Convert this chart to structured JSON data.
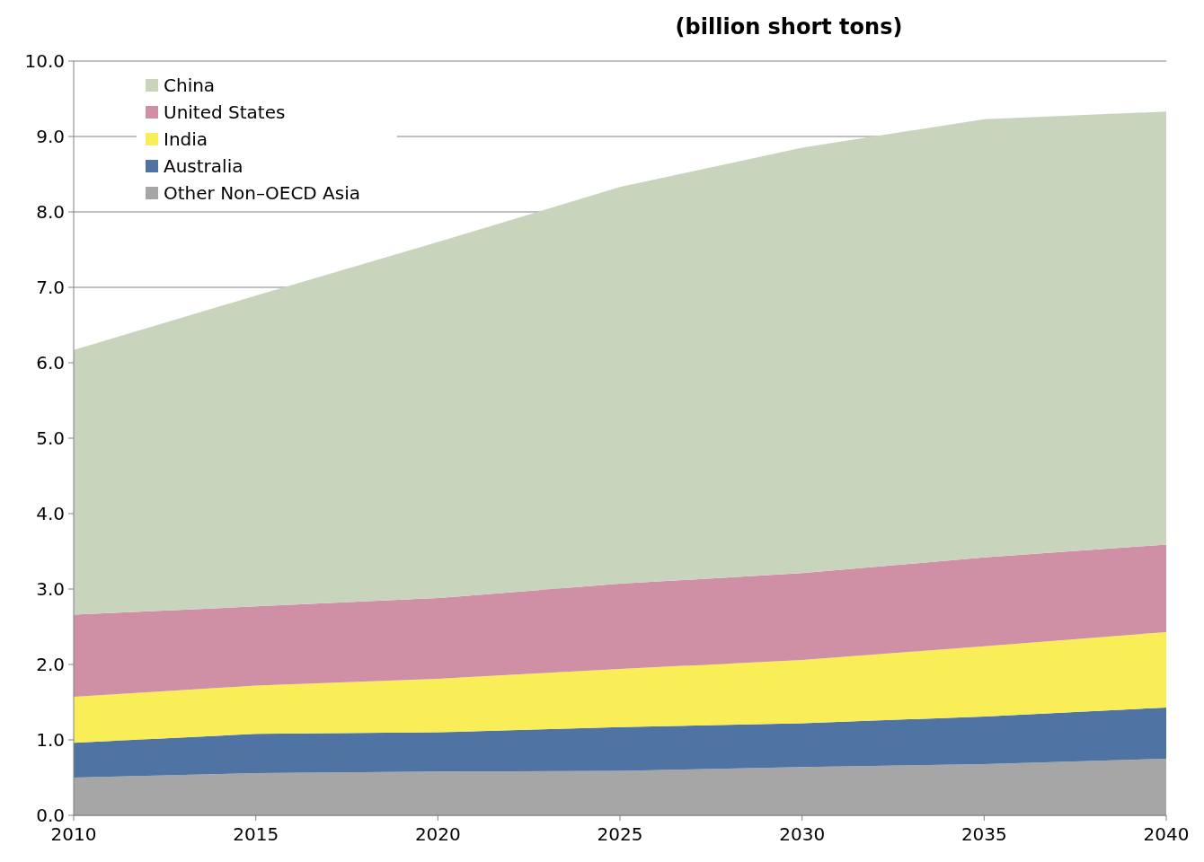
{
  "chart_data": {
    "type": "area",
    "stacked": true,
    "title": "(billion short tons)",
    "x": [
      2010,
      2015,
      2020,
      2025,
      2030,
      2035,
      2040
    ],
    "xlim": [
      2010,
      2040
    ],
    "xticks": [
      2010,
      2015,
      2020,
      2025,
      2030,
      2035,
      2040
    ],
    "ylim": [
      0,
      10
    ],
    "yticks": [
      {
        "value": 0,
        "label": "0.0"
      },
      {
        "value": 1,
        "label": "1.0"
      },
      {
        "value": 2,
        "label": "2.0"
      },
      {
        "value": 3,
        "label": "3.0"
      },
      {
        "value": 4,
        "label": "4.0"
      },
      {
        "value": 5,
        "label": "5.0"
      },
      {
        "value": 6,
        "label": "6.0"
      },
      {
        "value": 7,
        "label": "7.0"
      },
      {
        "value": 8,
        "label": "8.0"
      },
      {
        "value": 9,
        "label": "9.0"
      },
      {
        "value": 10,
        "label": "10.0"
      }
    ],
    "grid": "y",
    "legend": "top left",
    "series": [
      {
        "name": "Other Non–OECD Asia",
        "color": "#a6a6a6",
        "values": [
          0.5,
          0.56,
          0.58,
          0.59,
          0.64,
          0.68,
          0.75
        ]
      },
      {
        "name": "Australia",
        "color": "#4f73a3",
        "values": [
          0.46,
          0.52,
          0.52,
          0.58,
          0.58,
          0.63,
          0.68
        ]
      },
      {
        "name": "India",
        "color": "#f9ee57",
        "values": [
          0.61,
          0.64,
          0.71,
          0.77,
          0.84,
          0.93,
          1.0
        ]
      },
      {
        "name": "United States",
        "color": "#cf8fa4",
        "values": [
          1.09,
          1.05,
          1.07,
          1.13,
          1.15,
          1.18,
          1.16
        ]
      },
      {
        "name": "China",
        "color": "#c9d4bc",
        "values": [
          3.51,
          4.12,
          4.72,
          5.26,
          5.64,
          5.81,
          5.74
        ]
      }
    ]
  }
}
